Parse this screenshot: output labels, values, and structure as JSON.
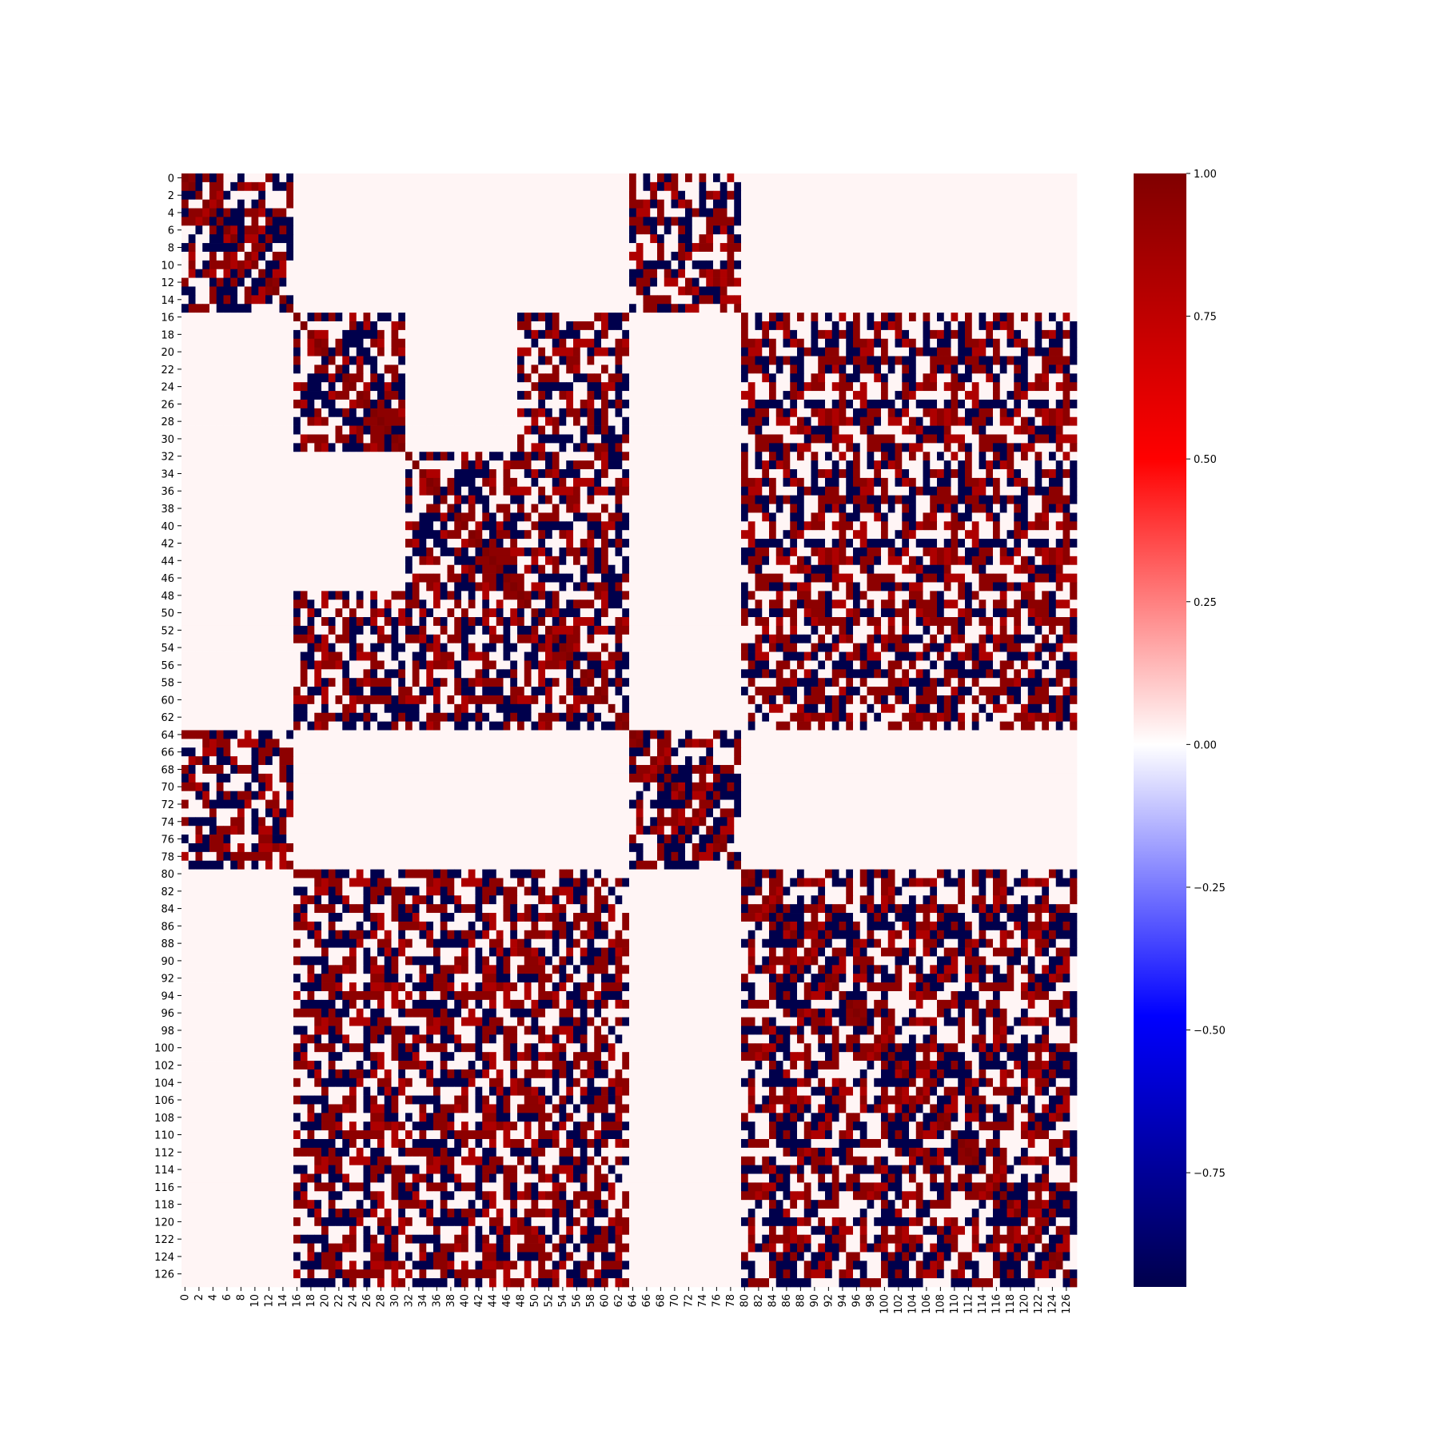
{
  "chart_data": {
    "type": "heatmap",
    "title": "",
    "xlabel": "",
    "ylabel": "",
    "n_rows": 128,
    "n_cols": 128,
    "x_tick_labels": [
      "0",
      "2",
      "4",
      "6",
      "8",
      "10",
      "12",
      "14",
      "16",
      "18",
      "20",
      "22",
      "24",
      "26",
      "28",
      "30",
      "32",
      "34",
      "36",
      "38",
      "40",
      "42",
      "44",
      "46",
      "48",
      "50",
      "52",
      "54",
      "56",
      "58",
      "60",
      "62",
      "64",
      "66",
      "68",
      "70",
      "72",
      "74",
      "76",
      "78",
      "80",
      "82",
      "84",
      "86",
      "88",
      "90",
      "92",
      "94",
      "96",
      "98",
      "100",
      "102",
      "104",
      "106",
      "108",
      "110",
      "112",
      "114",
      "116",
      "118",
      "120",
      "122",
      "124",
      "126"
    ],
    "y_tick_labels": [
      "0",
      "2",
      "4",
      "6",
      "8",
      "10",
      "12",
      "14",
      "16",
      "18",
      "20",
      "22",
      "24",
      "26",
      "28",
      "30",
      "32",
      "34",
      "36",
      "38",
      "40",
      "42",
      "44",
      "46",
      "48",
      "50",
      "52",
      "54",
      "56",
      "58",
      "60",
      "62",
      "64",
      "66",
      "68",
      "70",
      "72",
      "74",
      "76",
      "78",
      "80",
      "82",
      "84",
      "86",
      "88",
      "90",
      "92",
      "94",
      "96",
      "98",
      "100",
      "102",
      "104",
      "106",
      "108",
      "110",
      "112",
      "114",
      "116",
      "118",
      "120",
      "122",
      "124",
      "126"
    ],
    "colorbar": {
      "colormap": "seismic",
      "vmin": -0.95,
      "vmax": 1.0,
      "ticks": [
        1.0,
        0.75,
        0.5,
        0.25,
        0.0,
        -0.25,
        -0.5,
        -0.75
      ],
      "tick_labels": [
        "1.00",
        "0.75",
        "0.50",
        "0.25",
        "0.00",
        "−0.25",
        "−0.50",
        "−0.75"
      ],
      "stops": [
        {
          "v": -0.95,
          "color": "#00004c"
        },
        {
          "v": -0.475,
          "color": "#0000ff"
        },
        {
          "v": 0.0,
          "color": "#ffffff"
        },
        {
          "v": 0.5,
          "color": "#ff0000"
        },
        {
          "v": 1.0,
          "color": "#800000"
        }
      ]
    },
    "background_value": 0.02,
    "value_levels": {
      "strong_positive": 0.95,
      "medium_positive": 0.82,
      "negative": -0.95
    },
    "matrix_note_blocks": [
      {
        "rows": [
          0,
          15
        ],
        "cols": [
          0,
          15
        ]
      },
      {
        "rows": [
          0,
          15
        ],
        "cols": [
          64,
          79
        ]
      },
      {
        "rows": [
          64,
          79
        ],
        "cols": [
          0,
          15
        ]
      },
      {
        "rows": [
          64,
          79
        ],
        "cols": [
          64,
          79
        ]
      },
      {
        "rows": [
          16,
          31
        ],
        "cols": [
          16,
          31
        ]
      },
      {
        "rows": [
          16,
          31
        ],
        "cols": [
          48,
          63
        ]
      },
      {
        "rows": [
          16,
          31
        ],
        "cols": [
          80,
          127
        ]
      },
      {
        "rows": [
          32,
          47
        ],
        "cols": [
          32,
          47
        ]
      },
      {
        "rows": [
          32,
          47
        ],
        "cols": [
          96,
          111
        ]
      },
      {
        "rows": [
          48,
          63
        ],
        "cols": [
          16,
          63
        ]
      },
      {
        "rows": [
          48,
          63
        ],
        "cols": [
          80,
          127
        ]
      },
      {
        "rows": [
          80,
          127
        ],
        "cols": [
          16,
          63
        ]
      },
      {
        "rows": [
          80,
          127
        ],
        "cols": [
          80,
          127
        ]
      }
    ]
  }
}
